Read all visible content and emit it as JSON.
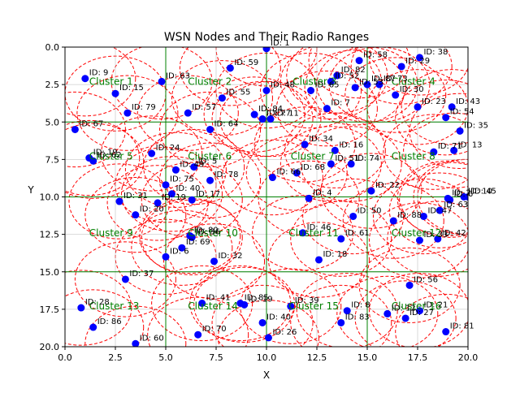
{
  "chart_data": {
    "type": "scatter",
    "title": "WSN Nodes and Their Radio Ranges",
    "xlabel": "X",
    "ylabel": "Y",
    "xlim": [
      0,
      20
    ],
    "ylim": [
      20,
      0
    ],
    "y_inverted": true,
    "xticks": [
      "0.0",
      "2.5",
      "5.0",
      "7.5",
      "10.0",
      "12.5",
      "15.0",
      "17.5",
      "20.0"
    ],
    "yticks": [
      "0.0",
      "2.5",
      "5.0",
      "7.5",
      "10.0",
      "12.5",
      "15.0",
      "17.5",
      "20.0"
    ],
    "grid": true,
    "cluster_grid_lines": [
      5,
      10,
      15
    ],
    "radio_range": 2.5,
    "colors": {
      "node": "#0000ff",
      "range": "#ff0000",
      "grid": "#008000",
      "cluster_label": "#008000"
    },
    "nodes": [
      {
        "id": 9,
        "label": "ID: 9",
        "x": 1.0,
        "y": 2.1
      },
      {
        "id": 63,
        "label": "ID: 63",
        "x": 4.8,
        "y": 2.3
      },
      {
        "id": 15,
        "label": "ID: 15",
        "x": 2.5,
        "y": 3.1
      },
      {
        "id": 59,
        "label": "ID: 59",
        "x": 8.2,
        "y": 1.4
      },
      {
        "id": 1,
        "label": "ID: 1",
        "x": 10.0,
        "y": 0.1
      },
      {
        "id": 58,
        "label": "ID: 58",
        "x": 14.6,
        "y": 0.9
      },
      {
        "id": 38,
        "label": "ID: 38",
        "x": 17.6,
        "y": 0.7
      },
      {
        "id": 29,
        "label": "ID: 29",
        "x": 16.7,
        "y": 1.3
      },
      {
        "id": 82,
        "label": "ID: 82",
        "x": 13.5,
        "y": 1.9
      },
      {
        "id": 87,
        "label": "ID: 87",
        "x": 15.0,
        "y": 2.5
      },
      {
        "id": 73,
        "label": "ID: 73",
        "x": 15.6,
        "y": 2.5
      },
      {
        "id": 52,
        "label": "ID: 52",
        "x": 13.2,
        "y": 2.3
      },
      {
        "id": 48,
        "label": "ID: 48",
        "x": 10.0,
        "y": 2.9
      },
      {
        "id": 65,
        "label": "ID: 65",
        "x": 12.2,
        "y": 2.9
      },
      {
        "id": 30,
        "label": "ID: 30",
        "x": 16.4,
        "y": 3.2
      },
      {
        "id": 55,
        "label": "ID: 55",
        "x": 7.8,
        "y": 3.4
      },
      {
        "id": 53,
        "label": "ID: 53",
        "x": 14.4,
        "y": 2.7
      },
      {
        "id": 79,
        "label": "ID: 79",
        "x": 3.1,
        "y": 4.4
      },
      {
        "id": 57,
        "label": "ID: 57",
        "x": 6.1,
        "y": 4.4
      },
      {
        "id": 84,
        "label": "ID: 84",
        "x": 9.4,
        "y": 4.5
      },
      {
        "id": 77,
        "label": "ID: 77",
        "x": 9.8,
        "y": 4.8
      },
      {
        "id": 11,
        "label": "ID: 11",
        "x": 10.2,
        "y": 4.8
      },
      {
        "id": 7,
        "label": "ID: 7",
        "x": 13.0,
        "y": 4.1
      },
      {
        "id": 23,
        "label": "ID: 23",
        "x": 17.5,
        "y": 4.0
      },
      {
        "id": 43,
        "label": "ID: 43",
        "x": 19.2,
        "y": 4.0
      },
      {
        "id": 54,
        "label": "ID: 54",
        "x": 18.9,
        "y": 4.7
      },
      {
        "id": 67,
        "label": "ID: 67",
        "x": 0.5,
        "y": 5.5
      },
      {
        "id": 64,
        "label": "ID: 64",
        "x": 7.2,
        "y": 5.5
      },
      {
        "id": 35,
        "label": "ID: 35",
        "x": 19.6,
        "y": 5.6
      },
      {
        "id": 34,
        "label": "ID: 34",
        "x": 11.9,
        "y": 6.5
      },
      {
        "id": 16,
        "label": "ID: 16",
        "x": 13.4,
        "y": 6.9
      },
      {
        "id": 13,
        "label": "ID: 13",
        "x": 19.3,
        "y": 6.9
      },
      {
        "id": 24,
        "label": "ID: 24",
        "x": 4.3,
        "y": 7.1
      },
      {
        "id": 62,
        "label": "ID: 62",
        "x": 1.4,
        "y": 7.6
      },
      {
        "id": 19,
        "label": "ID: 19",
        "x": 1.2,
        "y": 7.4
      },
      {
        "id": 74,
        "label": "ID: 74",
        "x": 14.2,
        "y": 7.8
      },
      {
        "id": 71,
        "label": "ID: 71",
        "x": 18.3,
        "y": 7.0
      },
      {
        "id": 51,
        "label": "ID: 51",
        "x": 13.2,
        "y": 7.8
      },
      {
        "id": 5,
        "label": "ID: 5",
        "x": 6.4,
        "y": 8.0
      },
      {
        "id": 49,
        "label": "ID: 49",
        "x": 5.5,
        "y": 8.2
      },
      {
        "id": 78,
        "label": "ID: 78",
        "x": 7.2,
        "y": 8.9
      },
      {
        "id": 68,
        "label": "ID: 68",
        "x": 11.5,
        "y": 8.4
      },
      {
        "id": 66,
        "label": "ID: 66",
        "x": 10.3,
        "y": 8.7
      },
      {
        "id": 22,
        "label": "ID: 22",
        "x": 15.2,
        "y": 9.6
      },
      {
        "id": 10,
        "label": "ID: 10",
        "x": 19.8,
        "y": 10.0
      },
      {
        "id": 45,
        "label": "ID: 45",
        "x": 20.0,
        "y": 10.0
      },
      {
        "id": 2,
        "label": "ID: 2",
        "x": 19.0,
        "y": 10.1
      },
      {
        "id": 6,
        "label": "ID: 6",
        "x": 19.1,
        "y": 10.2
      },
      {
        "id": 75,
        "label": "ID: 75",
        "x": 5.0,
        "y": 9.2
      },
      {
        "id": 40,
        "label": "ID: 40",
        "x": 5.3,
        "y": 9.8
      },
      {
        "id": 4,
        "label": "ID: 4",
        "x": 12.1,
        "y": 10.1
      },
      {
        "id": 31,
        "label": "ID: 31",
        "x": 2.7,
        "y": 10.3
      },
      {
        "id": 19,
        "label": "ID: 19",
        "x": 4.6,
        "y": 10.4
      },
      {
        "id": 17,
        "label": "ID: 17",
        "x": 6.3,
        "y": 10.2
      },
      {
        "id": 50,
        "label": "ID: 50",
        "x": 14.3,
        "y": 11.3
      },
      {
        "id": 63,
        "label": "ID: 63",
        "x": 18.6,
        "y": 10.9
      },
      {
        "id": 47,
        "label": "ID: 47",
        "x": 17.8,
        "y": 11.3
      },
      {
        "id": 20,
        "label": "ID: 20",
        "x": 3.5,
        "y": 11.2
      },
      {
        "id": 80,
        "label": "ID: 80",
        "x": 6.2,
        "y": 12.6
      },
      {
        "id": 46,
        "label": "ID: 46",
        "x": 11.8,
        "y": 12.4
      },
      {
        "id": 61,
        "label": "ID: 61",
        "x": 13.7,
        "y": 12.8
      },
      {
        "id": 88,
        "label": "ID: 88",
        "x": 16.3,
        "y": 11.6
      },
      {
        "id": 42,
        "label": "ID: 42",
        "x": 18.5,
        "y": 12.8
      },
      {
        "id": 33,
        "label": "ID: 33",
        "x": 17.6,
        "y": 12.9
      },
      {
        "id": 36,
        "label": "ID: 36",
        "x": 6.3,
        "y": 12.7
      },
      {
        "id": 69,
        "label": "ID: 69",
        "x": 5.8,
        "y": 13.4
      },
      {
        "id": 32,
        "label": "ID: 32",
        "x": 7.4,
        "y": 14.3
      },
      {
        "id": 18,
        "label": "ID: 18",
        "x": 12.6,
        "y": 14.2
      },
      {
        "id": 6,
        "label": "ID: 6",
        "x": 5.0,
        "y": 14.0
      },
      {
        "id": 37,
        "label": "ID: 37",
        "x": 3.0,
        "y": 15.5
      },
      {
        "id": 56,
        "label": "ID: 56",
        "x": 17.1,
        "y": 15.9
      },
      {
        "id": 28,
        "label": "ID: 28",
        "x": 0.8,
        "y": 17.4
      },
      {
        "id": 41,
        "label": "ID: 41",
        "x": 6.8,
        "y": 17.1
      },
      {
        "id": 19,
        "label": "ID: 19",
        "x": 8.9,
        "y": 17.2
      },
      {
        "id": 85,
        "label": "ID: 85",
        "x": 8.7,
        "y": 17.1
      },
      {
        "id": 39,
        "label": "ID: 39",
        "x": 11.2,
        "y": 17.3
      },
      {
        "id": 8,
        "label": "ID: 8",
        "x": 14.0,
        "y": 17.6
      },
      {
        "id": 21,
        "label": "ID: 21",
        "x": 17.6,
        "y": 17.6
      },
      {
        "id": 86,
        "label": "ID: 86",
        "x": 1.4,
        "y": 18.7
      },
      {
        "id": 40,
        "label": "ID: 40",
        "x": 9.8,
        "y": 18.4
      },
      {
        "id": 12,
        "label": "ID: 12",
        "x": 16.0,
        "y": 17.8
      },
      {
        "id": 27,
        "label": "ID: 27",
        "x": 16.9,
        "y": 18.1
      },
      {
        "id": 83,
        "label": "ID: 83",
        "x": 13.7,
        "y": 18.4
      },
      {
        "id": 70,
        "label": "ID: 70",
        "x": 6.6,
        "y": 19.2
      },
      {
        "id": 26,
        "label": "ID: 26",
        "x": 10.1,
        "y": 19.4
      },
      {
        "id": 60,
        "label": "ID: 60",
        "x": 3.5,
        "y": 19.8
      },
      {
        "id": 81,
        "label": "ID: 81",
        "x": 18.9,
        "y": 19.0
      }
    ],
    "clusters": [
      {
        "label": "Cluster 1",
        "x": 1.2,
        "y": 2.3
      },
      {
        "label": "Cluster 2",
        "x": 6.1,
        "y": 2.3
      },
      {
        "label": "Cluster 3",
        "x": 11.3,
        "y": 2.3
      },
      {
        "label": "Cluster 4",
        "x": 16.2,
        "y": 2.3
      },
      {
        "label": "Cluster 5",
        "x": 1.2,
        "y": 7.3
      },
      {
        "label": "Cluster 6",
        "x": 6.1,
        "y": 7.3
      },
      {
        "label": "Cluster 7",
        "x": 11.2,
        "y": 7.3
      },
      {
        "label": "Cluster 8",
        "x": 16.2,
        "y": 7.3
      },
      {
        "label": "Cluster 9",
        "x": 1.2,
        "y": 12.4
      },
      {
        "label": "Cluster 10",
        "x": 6.1,
        "y": 12.4
      },
      {
        "label": "Cluster 11",
        "x": 11.1,
        "y": 12.4
      },
      {
        "label": "Cluster 12",
        "x": 16.2,
        "y": 12.4
      },
      {
        "label": "Cluster 13",
        "x": 1.2,
        "y": 17.3
      },
      {
        "label": "Cluster 14",
        "x": 6.1,
        "y": 17.3
      },
      {
        "label": "Cluster 15",
        "x": 11.1,
        "y": 17.3
      },
      {
        "label": "Cluster 16",
        "x": 16.2,
        "y": 17.3
      }
    ]
  }
}
